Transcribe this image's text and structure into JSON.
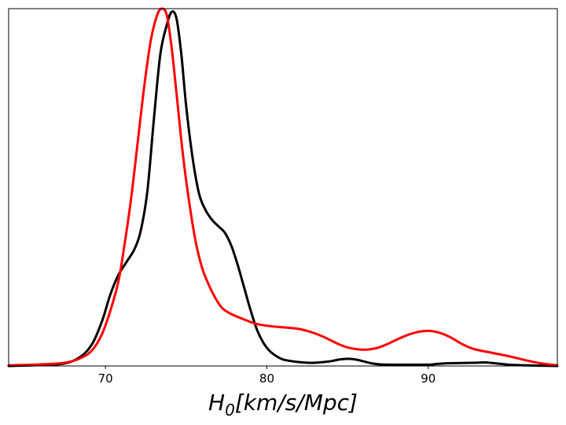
{
  "chart_data": {
    "type": "line",
    "title": "",
    "xlabel_parts": {
      "symbol": "H",
      "subscript": "0",
      "units": "[km/s/Mpc]"
    },
    "ylabel": "",
    "xlim": [
      64,
      98
    ],
    "ylim": [
      0,
      1.1
    ],
    "xticks": [
      70,
      80,
      90
    ],
    "xtick_labels": [
      "70",
      "80",
      "90"
    ],
    "yticks_visible": false,
    "grid": false,
    "legend": "none",
    "series": [
      {
        "color": "#000000",
        "x": [
          64,
          66,
          67.5,
          68.5,
          69.2,
          69.8,
          70.3,
          70.8,
          71.3,
          71.8,
          72.2,
          72.6,
          73.0,
          73.4,
          73.8,
          74.1,
          74.4,
          74.7,
          75.0,
          75.4,
          75.8,
          76.2,
          76.6,
          77.0,
          77.4,
          77.8,
          78.2,
          78.6,
          79.0,
          79.4,
          79.8,
          80.2,
          80.6,
          81.0,
          81.5,
          82.0,
          82.5,
          83.0,
          83.5,
          84.0,
          84.5,
          85.0,
          85.5,
          86.0,
          86.5,
          87.0,
          88.0,
          89.0,
          90.0,
          90.5,
          91.0,
          92.0,
          93.0,
          93.5,
          94.0,
          95.0,
          96.0,
          97.0,
          98.0
        ],
        "values": [
          0.0,
          0.003,
          0.008,
          0.03,
          0.07,
          0.14,
          0.22,
          0.28,
          0.32,
          0.36,
          0.42,
          0.54,
          0.76,
          0.96,
          1.05,
          1.09,
          1.07,
          0.96,
          0.8,
          0.64,
          0.53,
          0.48,
          0.45,
          0.43,
          0.41,
          0.37,
          0.31,
          0.24,
          0.17,
          0.11,
          0.07,
          0.045,
          0.03,
          0.02,
          0.015,
          0.012,
          0.01,
          0.01,
          0.012,
          0.015,
          0.02,
          0.022,
          0.02,
          0.014,
          0.008,
          0.005,
          0.004,
          0.004,
          0.004,
          0.006,
          0.008,
          0.009,
          0.01,
          0.011,
          0.009,
          0.004,
          0.002,
          0.001,
          0.0
        ]
      },
      {
        "color": "#ff0000",
        "x": [
          64,
          66,
          67.5,
          68.5,
          69.2,
          69.8,
          70.3,
          70.8,
          71.2,
          71.6,
          72.0,
          72.4,
          72.8,
          73.2,
          73.5,
          73.8,
          74.1,
          74.4,
          74.8,
          75.2,
          75.6,
          76.0,
          76.4,
          76.8,
          77.2,
          77.6,
          78.0,
          78.5,
          79.0,
          79.5,
          80.0,
          80.5,
          81.0,
          81.5,
          82.0,
          82.5,
          83.0,
          83.5,
          84.0,
          84.5,
          85.0,
          85.5,
          86.0,
          86.5,
          87.0,
          87.5,
          88.0,
          88.5,
          89.0,
          89.5,
          90.0,
          90.5,
          91.0,
          91.5,
          92.0,
          92.5,
          93.0,
          94.0,
          95.0,
          96.0,
          97.0,
          98.0
        ],
        "values": [
          0.002,
          0.005,
          0.01,
          0.025,
          0.05,
          0.1,
          0.17,
          0.26,
          0.38,
          0.52,
          0.69,
          0.86,
          1.0,
          1.08,
          1.1,
          1.08,
          0.98,
          0.84,
          0.65,
          0.5,
          0.38,
          0.3,
          0.25,
          0.21,
          0.18,
          0.165,
          0.155,
          0.145,
          0.135,
          0.128,
          0.124,
          0.121,
          0.119,
          0.117,
          0.114,
          0.108,
          0.1,
          0.09,
          0.078,
          0.066,
          0.057,
          0.052,
          0.05,
          0.052,
          0.058,
          0.068,
          0.08,
          0.091,
          0.1,
          0.106,
          0.108,
          0.105,
          0.097,
          0.085,
          0.07,
          0.058,
          0.05,
          0.04,
          0.03,
          0.018,
          0.008,
          0.002
        ]
      }
    ]
  }
}
